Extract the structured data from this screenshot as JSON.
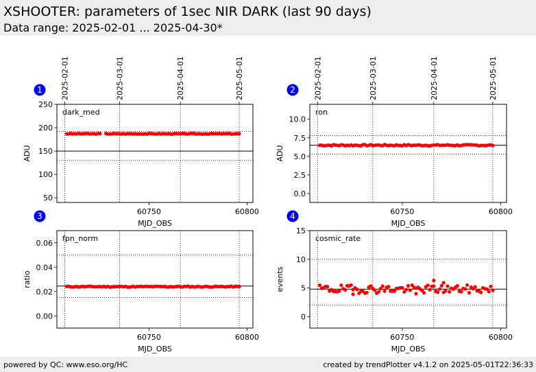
{
  "header": {
    "title": "XSHOOTER: parameters of 1sec NIR DARK (last 90 days)",
    "subtitle": "Data range: 2025-02-01 ... 2025-04-30*"
  },
  "footer": {
    "left": "powered by QC: www.eso.org/HC",
    "right": "created by trendPlotter v4.1.2 on 2025-05-01T22:36:33"
  },
  "colors": {
    "points": "#ff0000",
    "badge": "#0000ff",
    "reference": "#000000"
  },
  "date_ticks": [
    {
      "label": "2025-02-01",
      "mjd": 60707
    },
    {
      "label": "2025-03-01",
      "mjd": 60735
    },
    {
      "label": "2025-04-01",
      "mjd": 60766
    },
    {
      "label": "2025-05-01",
      "mjd": 60796
    }
  ],
  "chart_data": [
    {
      "type": "scatter",
      "index": "1",
      "param": "dark_med",
      "xlabel": "MJD_OBS",
      "ylabel": "ADU",
      "xlim": [
        60703,
        60803
      ],
      "ylim": [
        40,
        250
      ],
      "xticks": [
        60750,
        60800
      ],
      "yticks": [
        50,
        100,
        150,
        200,
        250
      ],
      "ref": 150,
      "bounds": [
        130,
        192
      ],
      "base": 187,
      "noise": 0.8,
      "seed": 3
    },
    {
      "type": "scatter",
      "index": "2",
      "param": "ron",
      "xlabel": "MJD_OBS",
      "ylabel": "ADU",
      "xlim": [
        60703,
        60803
      ],
      "ylim": [
        -1.2,
        12
      ],
      "xticks": [
        60750,
        60800
      ],
      "yticks": [
        0.0,
        2.5,
        5.0,
        7.5,
        10.0
      ],
      "ref": 6.5,
      "bounds": [
        5.3,
        7.8
      ],
      "base": 6.5,
      "noise": 0.09,
      "seed": 7
    },
    {
      "type": "scatter",
      "index": "3",
      "param": "fpn_norm",
      "xlabel": "MJD_OBS",
      "ylabel": "ratio",
      "xlim": [
        60703,
        60803
      ],
      "ylim": [
        -0.01,
        0.07
      ],
      "xticks": [
        60750,
        60800
      ],
      "yticks": [
        0.0,
        0.02,
        0.04,
        0.06
      ],
      "ref": 0.0245,
      "bounds": [
        0.015,
        0.05
      ],
      "base": 0.024,
      "noise": 0.0004,
      "seed": 11
    },
    {
      "type": "scatter",
      "index": "4",
      "param": "cosmic_rate",
      "xlabel": "MJD_OBS",
      "ylabel": "events",
      "xlim": [
        60703,
        60803
      ],
      "ylim": [
        -2,
        15
      ],
      "xticks": [
        60750,
        60800
      ],
      "yticks": [
        0,
        5,
        10,
        15
      ],
      "ref": 4.8,
      "bounds": [
        2.0,
        10.0
      ],
      "base": 4.8,
      "noise": 0.45,
      "seed": 19,
      "extra": [
        [
          60766,
          6.3
        ],
        [
          60771,
          5.9
        ],
        [
          60725,
          3.9
        ],
        [
          60757,
          4.0
        ]
      ]
    }
  ]
}
